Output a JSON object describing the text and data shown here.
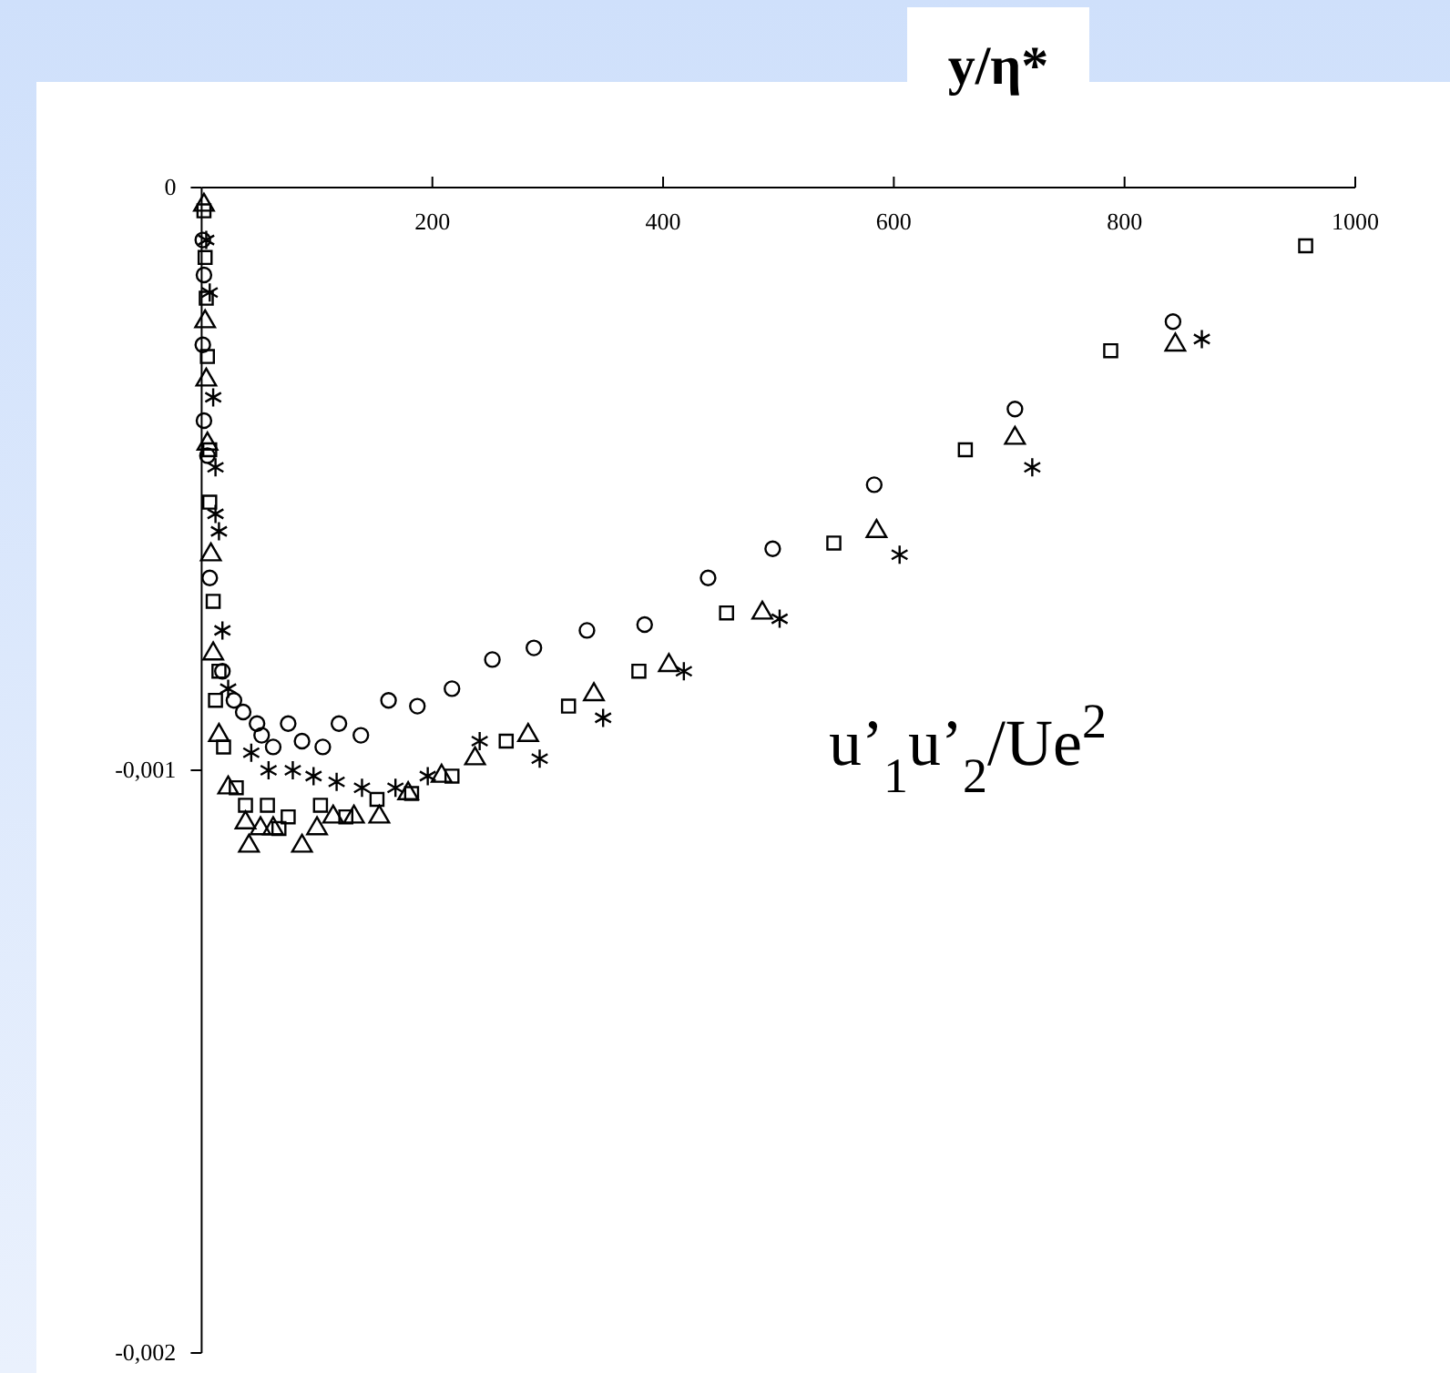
{
  "chart_data": {
    "type": "scatter",
    "xlabel": "y/η*",
    "ylabel": "u’$_{1}$u’$_{2}$/Ue$^{2}$",
    "xlim": [
      0,
      1000
    ],
    "xticks": [
      200,
      400,
      600,
      800,
      1000
    ],
    "ylim": [
      -0.002,
      0
    ],
    "yticks": [
      {
        "value": 0,
        "label": "0"
      },
      {
        "value": -0.001,
        "label": "-0,001"
      },
      {
        "value": -0.002,
        "label": "-0,002"
      }
    ],
    "grid": false,
    "series": [
      {
        "color": "#000000",
        "marker": "circle",
        "x": [
          1,
          2,
          1,
          2,
          5,
          7,
          18,
          28,
          36,
          48,
          52,
          62,
          75,
          87,
          105,
          119,
          138,
          162,
          187,
          217,
          252,
          288,
          334,
          384,
          439,
          495,
          583,
          705,
          842
        ],
        "values": [
          -9e-05,
          -0.00015,
          -0.00027,
          -0.0004,
          -0.00046,
          -0.00067,
          -0.00083,
          -0.00088,
          -0.0009,
          -0.00092,
          -0.00094,
          -0.00096,
          -0.00092,
          -0.00095,
          -0.00096,
          -0.00092,
          -0.00094,
          -0.00088,
          -0.00089,
          -0.00086,
          -0.00081,
          -0.00079,
          -0.00076,
          -0.00075,
          -0.00067,
          -0.00062,
          -0.00051,
          -0.00038,
          -0.00023
        ]
      },
      {
        "color": "#000000",
        "marker": "square",
        "x": [
          2,
          3,
          4,
          5,
          7,
          7,
          10,
          12,
          15,
          19,
          30,
          38,
          57,
          67,
          75,
          103,
          125,
          152,
          182,
          217,
          264,
          318,
          379,
          455,
          548,
          662,
          788,
          957
        ],
        "values": [
          -4e-05,
          -0.00012,
          -0.00019,
          -0.00029,
          -0.00045,
          -0.00054,
          -0.00071,
          -0.00088,
          -0.00083,
          -0.00096,
          -0.00103,
          -0.00106,
          -0.00106,
          -0.0011,
          -0.00108,
          -0.00106,
          -0.00108,
          -0.00105,
          -0.00104,
          -0.00101,
          -0.00095,
          -0.00089,
          -0.00083,
          -0.00073,
          -0.00061,
          -0.00045,
          -0.00028,
          -0.0001
        ]
      },
      {
        "color": "#000000",
        "marker": "triangle",
        "x": [
          2,
          3,
          4,
          5,
          8,
          10,
          15,
          23,
          38,
          41,
          51,
          62,
          87,
          100,
          114,
          132,
          154,
          179,
          208,
          237,
          283,
          340,
          405,
          486,
          585,
          705,
          844
        ],
        "values": [
          -3e-05,
          -0.00023,
          -0.00033,
          -0.00044,
          -0.00063,
          -0.0008,
          -0.00094,
          -0.00103,
          -0.00109,
          -0.00113,
          -0.0011,
          -0.0011,
          -0.00113,
          -0.0011,
          -0.00108,
          -0.00108,
          -0.00108,
          -0.00104,
          -0.00101,
          -0.00098,
          -0.00094,
          -0.00087,
          -0.00082,
          -0.00073,
          -0.00059,
          -0.00043,
          -0.00027
        ]
      },
      {
        "color": "#000000",
        "marker": "cross",
        "x": [
          4,
          7,
          10,
          12,
          12,
          15,
          18,
          23,
          43,
          58,
          79,
          97,
          117,
          139,
          168,
          196,
          241,
          293,
          348,
          418,
          501,
          605,
          720,
          867
        ],
        "values": [
          -9e-05,
          -0.00018,
          -0.00036,
          -0.00048,
          -0.00056,
          -0.00059,
          -0.00076,
          -0.00086,
          -0.00097,
          -0.001,
          -0.001,
          -0.00101,
          -0.00102,
          -0.00103,
          -0.00103,
          -0.00101,
          -0.00095,
          -0.00098,
          -0.00091,
          -0.00083,
          -0.00074,
          -0.00063,
          -0.00048,
          -0.00026
        ]
      }
    ]
  }
}
